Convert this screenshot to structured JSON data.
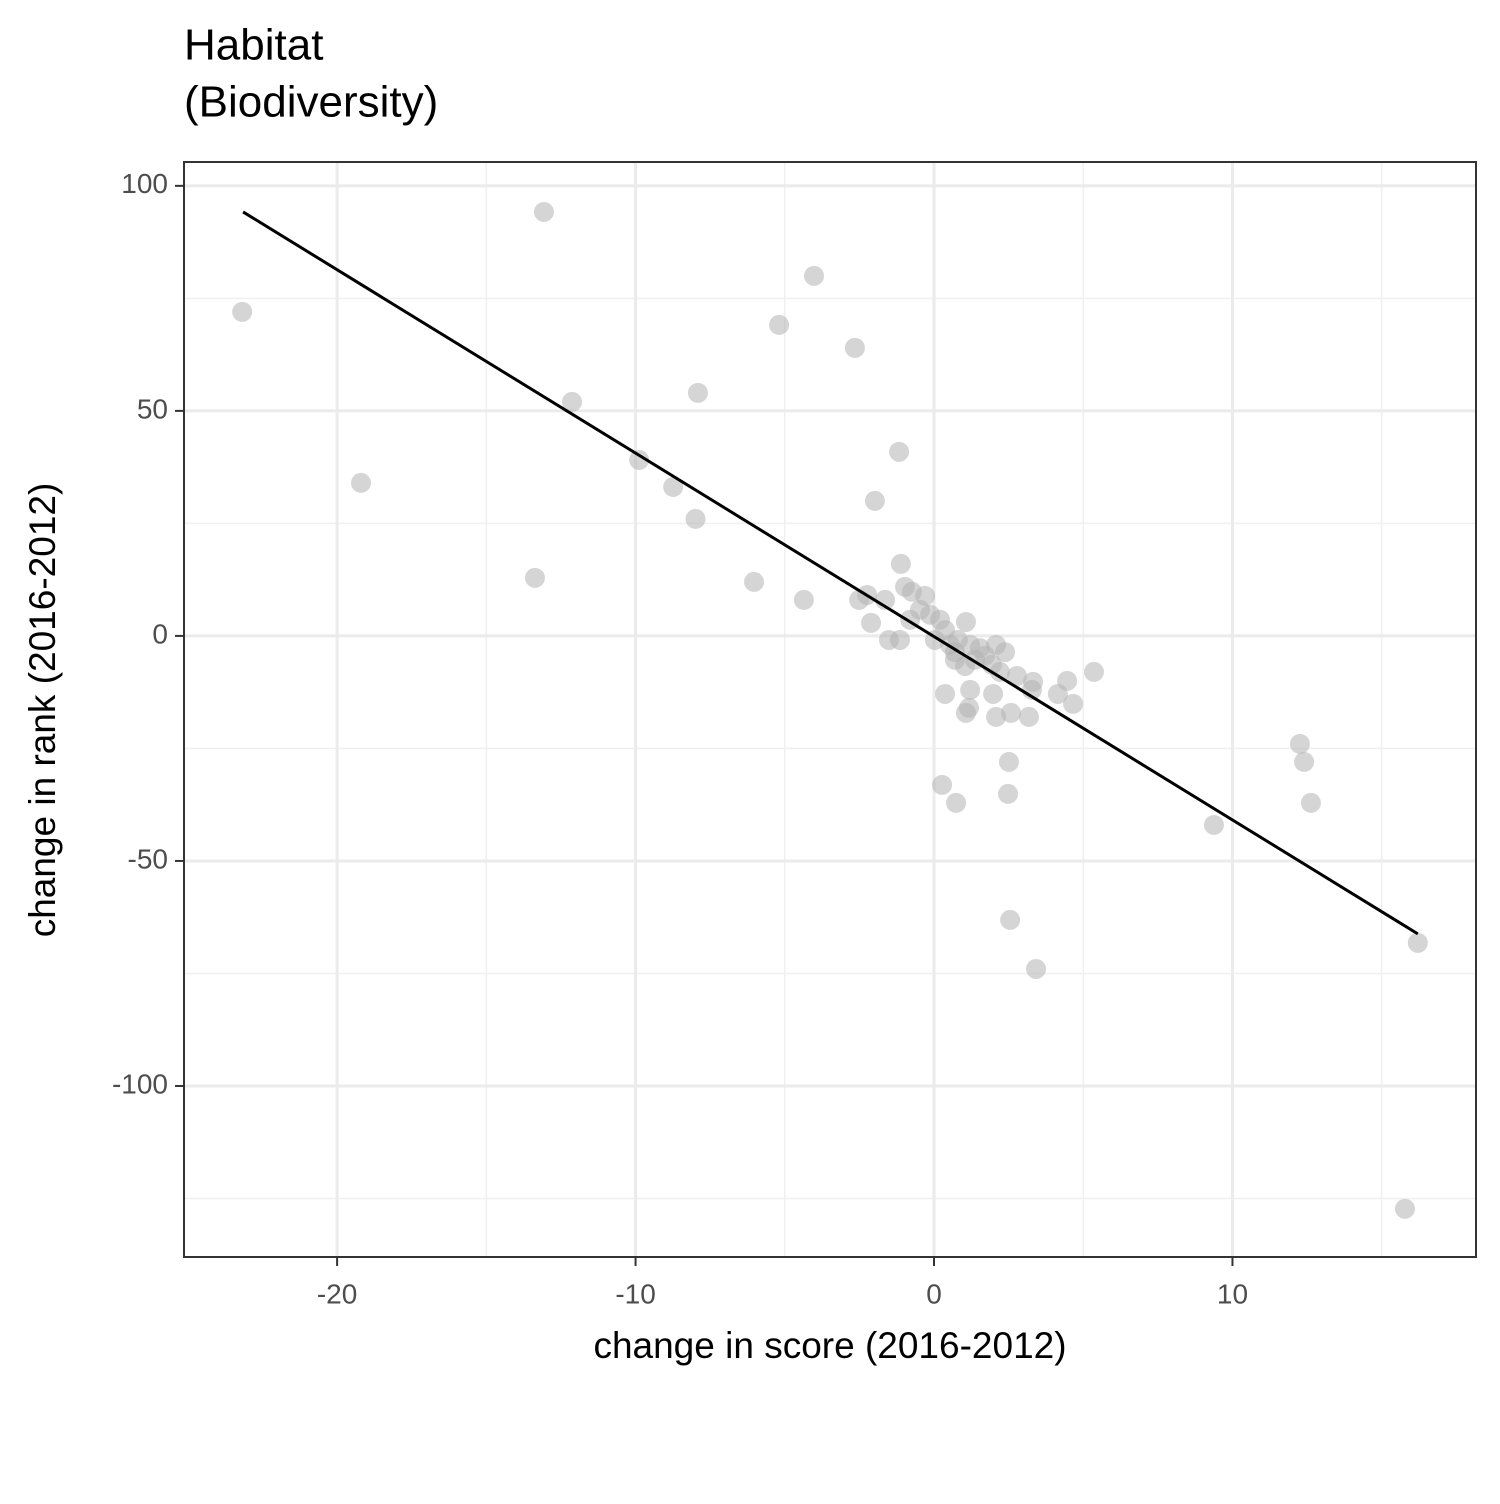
{
  "chart_data": {
    "type": "scatter",
    "title": [
      "Habitat",
      "(Biodiversity)"
    ],
    "x_label": "change in score (2016-2012)",
    "y_label": "change in rank (2016-2012)",
    "xlim": [
      -25.13,
      18.16
    ],
    "ylim": [
      -138,
      105.3
    ],
    "xticks": [
      -20,
      -10,
      0,
      10
    ],
    "yticks": [
      100,
      50,
      0,
      -50,
      -100
    ],
    "x_minor_grid": [
      -15,
      -5,
      5,
      15
    ],
    "y_minor_grid": [
      75,
      25,
      -25,
      -75,
      -125
    ],
    "grid": true,
    "color": "#b3b3b3",
    "x": [
      -23.18,
      -13.07,
      -4.02,
      -5.19,
      -2.65,
      -7.91,
      -12.13,
      -1.17,
      -9.88,
      -19.2,
      -8.74,
      -1.98,
      -7.99,
      -1.11,
      -13.37,
      -6.03,
      -4.36,
      -2.51,
      -2.24,
      -1.64,
      -0.97,
      -0.74,
      -0.3,
      -2.11,
      -1.51,
      -1.14,
      -0.8,
      -0.47,
      -0.13,
      0.2,
      0.37,
      0.03,
      0.54,
      0.8,
      1.07,
      1.21,
      1.54,
      0.7,
      1.04,
      1.71,
      2.08,
      2.38,
      1.94,
      2.21,
      2.78,
      3.32,
      3.28,
      1.21,
      0.37,
      1.98,
      4.15,
      4.46,
      5.36,
      4.66,
      1.17,
      1.07,
      2.08,
      2.58,
      3.18,
      2.51,
      2.48,
      0.27,
      0.74,
      9.38,
      12.26,
      12.4,
      12.63,
      2.55,
      3.42,
      16.21,
      15.78,
      1.37,
      0.7
    ],
    "values": [
      72,
      94.2,
      80,
      69.1,
      64,
      54,
      52,
      40.9,
      39.1,
      34,
      33.1,
      30,
      26,
      16,
      12.9,
      12,
      8,
      8,
      9.1,
      8,
      10.9,
      9.8,
      8.9,
      2.9,
      -0.9,
      -0.9,
      3.6,
      5.8,
      4.7,
      3.6,
      1.3,
      -0.9,
      -2,
      -0.9,
      3.1,
      -2,
      -2.7,
      -5.3,
      -6.7,
      -4.4,
      -2,
      -3.6,
      -6.4,
      -8,
      -8.9,
      -10.2,
      -12,
      -12,
      -12.9,
      -12.9,
      -12.9,
      -10,
      -8,
      -15.1,
      -16,
      -17.1,
      -18,
      -17.1,
      -18,
      -28,
      -35.1,
      -33.1,
      -37.1,
      -42,
      -24,
      -28,
      -37.1,
      -63.1,
      -74,
      -68.2,
      -127.3,
      -5.3,
      -3.6
    ],
    "trend_line": {
      "color": "#000000",
      "x": [
        -23.15,
        16.21
      ],
      "values": [
        94.2,
        -66.2
      ]
    }
  }
}
